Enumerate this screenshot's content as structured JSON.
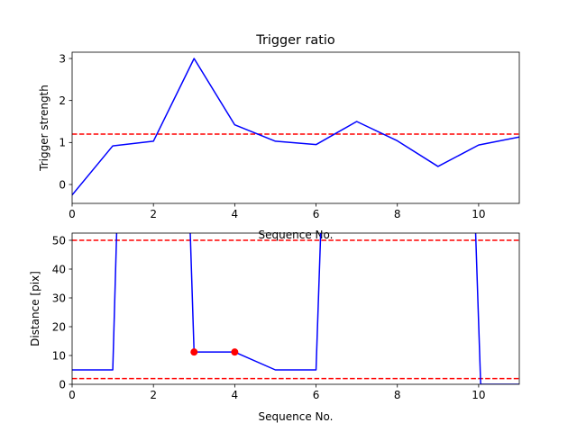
{
  "chart_data": [
    {
      "type": "line",
      "title": "Trigger ratio",
      "xlabel": "Sequence No.",
      "ylabel": "Trigger strength",
      "xlim": [
        0,
        11
      ],
      "ylim": [
        -0.45,
        3.15
      ],
      "xticks": [
        0,
        2,
        4,
        6,
        8,
        10
      ],
      "yticks": [
        0,
        1,
        2,
        3
      ],
      "series": [
        {
          "color": "#0000ff",
          "style": "solid",
          "x": [
            0,
            1,
            2,
            3,
            4,
            5,
            6,
            7,
            8,
            9,
            10,
            11
          ],
          "y": [
            -0.25,
            0.92,
            1.03,
            3.0,
            1.42,
            1.03,
            0.95,
            1.5,
            1.04,
            0.43,
            0.94,
            1.13
          ]
        }
      ],
      "hlines": [
        {
          "y": 1.2,
          "color": "#ff0000",
          "style": "dashed"
        }
      ],
      "grid": false
    },
    {
      "type": "line",
      "title": "",
      "xlabel": "Sequence No.",
      "ylabel": "Distance [pix]",
      "xlim": [
        0,
        11
      ],
      "ylim": [
        0,
        52.5
      ],
      "xticks": [
        0,
        2,
        4,
        6,
        8,
        10
      ],
      "yticks": [
        0,
        10,
        20,
        30,
        40,
        50
      ],
      "series": [
        {
          "color": "#0000ff",
          "style": "solid",
          "x": [
            0,
            1,
            1.1,
            2.9,
            3,
            4,
            5,
            6,
            6.12,
            9.92,
            10.05,
            11
          ],
          "y": [
            5,
            5,
            55,
            55,
            11.2,
            11.2,
            5,
            5,
            55,
            55,
            0,
            0
          ]
        }
      ],
      "markers": [
        {
          "x": 3,
          "y": 11.2,
          "color": "#ff0000"
        },
        {
          "x": 4,
          "y": 11.2,
          "color": "#ff0000"
        }
      ],
      "hlines": [
        {
          "y": 50,
          "color": "#ff0000",
          "style": "dashed"
        },
        {
          "y": 2,
          "color": "#ff0000",
          "style": "dashed"
        }
      ],
      "grid": false
    }
  ]
}
